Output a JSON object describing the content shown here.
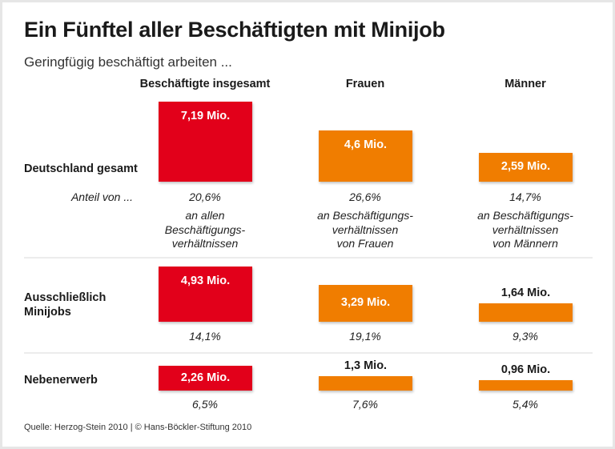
{
  "chart_data": {
    "type": "bar",
    "title": "Ein Fünftel aller Beschäftigten mit Minijob",
    "subtitle": "Geringfügig beschäftigt arbeiten ...",
    "columns": [
      "Beschäftigte insgesamt",
      "Frauen",
      "Männer"
    ],
    "unit": "Mio.",
    "colors": {
      "insgesamt": "#e2001a",
      "gender": "#f07d00"
    },
    "share_label": "Anteil von ...",
    "rows": [
      {
        "label": [
          "Deutschland gesamt"
        ],
        "values": [
          7.19,
          4.6,
          2.59
        ],
        "value_labels": [
          "7,19 Mio.",
          "4,6 Mio.",
          "2,59 Mio."
        ],
        "shares": [
          "20,6%",
          "26,6%",
          "14,7%"
        ],
        "share_descriptions": [
          [
            "an allen",
            "Beschäftigungs-",
            "verhältnissen"
          ],
          [
            "an Beschäftigungs-",
            "verhältnissen",
            "von Frauen"
          ],
          [
            "an Beschäftigungs-",
            "verhältnissen",
            "von Männern"
          ]
        ]
      },
      {
        "label": [
          "Ausschließlich",
          "Minijobs"
        ],
        "values": [
          4.93,
          3.29,
          1.64
        ],
        "value_labels": [
          "4,93 Mio.",
          "3,29 Mio.",
          "1,64 Mio."
        ],
        "shares": [
          "14,1%",
          "19,1%",
          "9,3%"
        ]
      },
      {
        "label": [
          "Nebenerwerb"
        ],
        "values": [
          2.26,
          1.3,
          0.96
        ],
        "value_labels": [
          "2,26 Mio.",
          "1,3 Mio.",
          "0,96 Mio."
        ],
        "shares": [
          "6,5%",
          "7,6%",
          "5,4%"
        ]
      }
    ]
  },
  "footer": "Quelle: Herzog-Stein 2010 | © Hans-Böckler-Stiftung 2010"
}
